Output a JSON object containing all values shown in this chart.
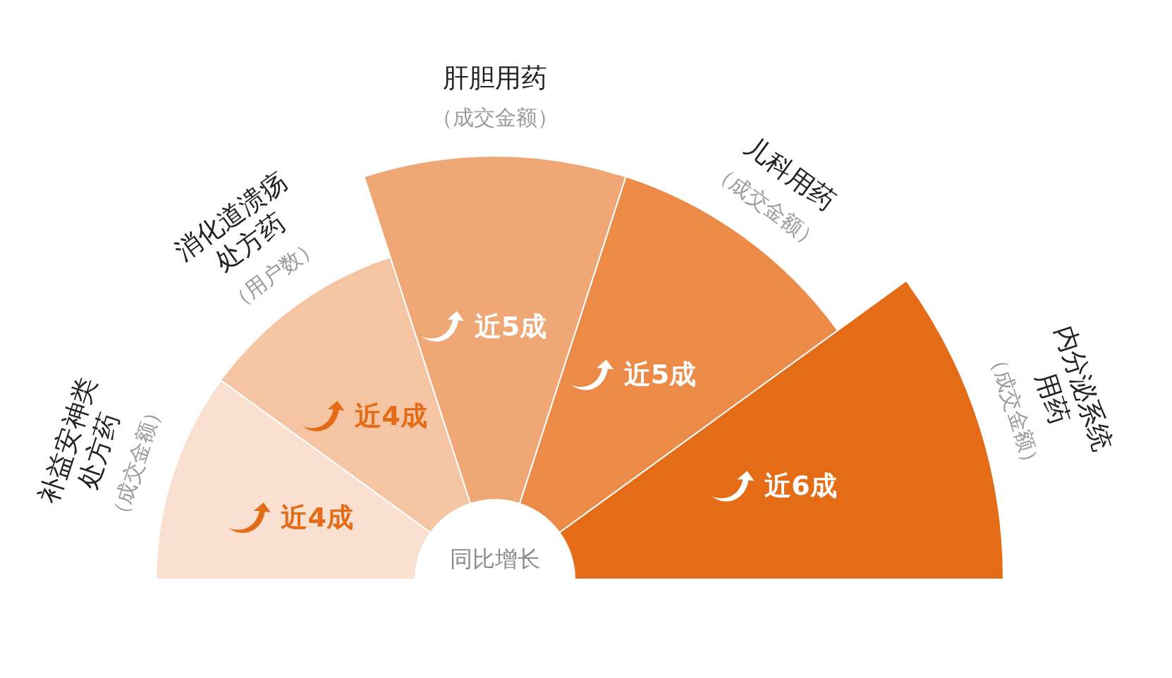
{
  "chart_data": {
    "type": "other",
    "categories": [
      "补益安神类\n处方药",
      "消化道溃疡\n处方药",
      "肝胆用药",
      "儿科用药",
      "内分泌系统\n用药"
    ],
    "values": [
      4,
      4,
      5,
      5,
      6
    ],
    "value_labels": [
      "近4成",
      "近4成",
      "近5成",
      "近5成",
      "近6成"
    ],
    "colors": [
      "#fae0d0",
      "#f5c4a3",
      "#f0a776",
      "#ec8a47",
      "#e46c17"
    ],
    "annotations": [
      {
        "text": "（成交金额）",
        "x": "补益安神类\n处方药"
      },
      {
        "text": "（用户数）",
        "x": "消化道溃疡\n处方药"
      },
      {
        "text": "（成交金额）",
        "x": "肝胆用药"
      },
      {
        "text": "（成交金额）",
        "x": "儿科用药"
      },
      {
        "text": "（成交金额）",
        "x": "内分泌系统\n用药"
      },
      "同比增长"
    ]
  }
}
